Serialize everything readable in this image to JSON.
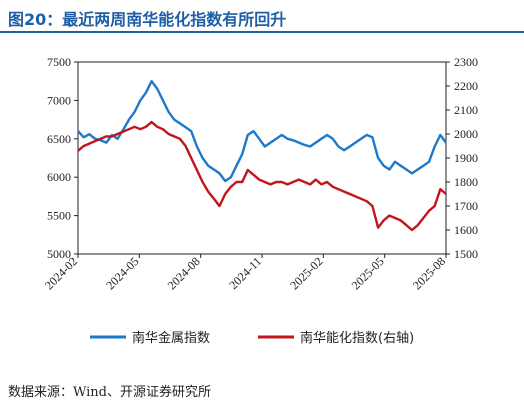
{
  "title": "图20：最近两周南华能化指数有所回升",
  "source": "数据来源：Wind、开源证券研究所",
  "chart_data": {
    "type": "line",
    "title": "图20：最近两周南华能化指数有所回升",
    "x_labels": [
      "2024-02",
      "2024-05",
      "2024-08",
      "2024-11",
      "2025-02",
      "2025-05",
      "2025-08"
    ],
    "y_left": {
      "ticks": [
        "5000",
        "5500",
        "6000",
        "6500",
        "7000",
        "7500"
      ],
      "range": [
        5000,
        7500
      ]
    },
    "y_right": {
      "ticks": [
        "1500",
        "1600",
        "1700",
        "1800",
        "1900",
        "2000",
        "2100",
        "2200",
        "2300"
      ],
      "range": [
        1500,
        2300
      ]
    },
    "legend_position": "bottom",
    "grid": false,
    "series": [
      {
        "name": "南华金属指数",
        "axis": "left",
        "color": "#1f78c8",
        "values": [
          6600,
          6520,
          6560,
          6500,
          6480,
          6450,
          6550,
          6500,
          6620,
          6750,
          6850,
          7000,
          7100,
          7250,
          7150,
          7000,
          6850,
          6750,
          6700,
          6650,
          6600,
          6400,
          6250,
          6150,
          6100,
          6050,
          5950,
          6000,
          6150,
          6300,
          6550,
          6600,
          6500,
          6400,
          6450,
          6500,
          6550,
          6500,
          6480,
          6450,
          6420,
          6400,
          6450,
          6500,
          6550,
          6500,
          6400,
          6350,
          6400,
          6450,
          6500,
          6550,
          6520,
          6250,
          6150,
          6100,
          6200,
          6150,
          6100,
          6050,
          6100,
          6150,
          6200,
          6400,
          6550,
          6450
        ]
      },
      {
        "name": "南华能化指数(右轴)",
        "axis": "right",
        "color": "#c0151b",
        "values": [
          1930,
          1950,
          1960,
          1970,
          1980,
          1990,
          1990,
          2000,
          2010,
          2020,
          2030,
          2020,
          2030,
          2050,
          2030,
          2020,
          2000,
          1990,
          1980,
          1950,
          1900,
          1850,
          1800,
          1760,
          1730,
          1700,
          1750,
          1780,
          1800,
          1800,
          1850,
          1830,
          1810,
          1800,
          1790,
          1800,
          1800,
          1790,
          1800,
          1810,
          1800,
          1790,
          1810,
          1790,
          1800,
          1780,
          1770,
          1760,
          1750,
          1740,
          1730,
          1720,
          1700,
          1610,
          1640,
          1660,
          1650,
          1640,
          1620,
          1600,
          1620,
          1650,
          1680,
          1700,
          1770,
          1750
        ]
      }
    ]
  }
}
